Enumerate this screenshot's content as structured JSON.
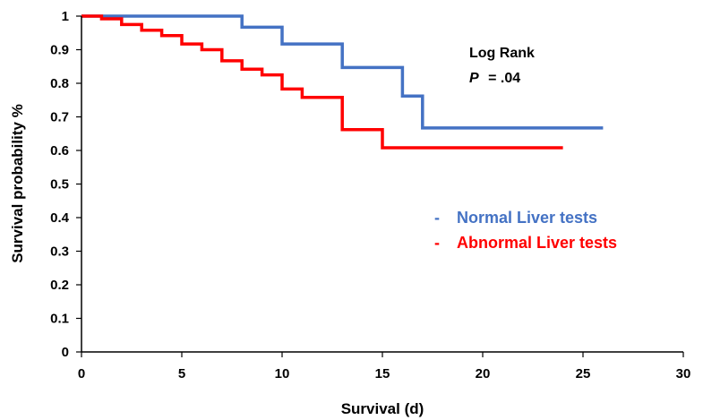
{
  "chart_data": {
    "type": "line",
    "title": "",
    "xlabel": "Survival (d)",
    "ylabel": "Survival probability %",
    "xlim": [
      0,
      30
    ],
    "ylim": [
      0,
      1
    ],
    "xticks": [
      0,
      5,
      10,
      15,
      20,
      25,
      30
    ],
    "yticks": [
      "0",
      "0.1",
      "0.2",
      "0.3",
      "0.4",
      "0.5",
      "0.6",
      "0.7",
      "0.8",
      "0.9",
      "1"
    ],
    "grid": false,
    "legend_position": "right",
    "step": true,
    "series": [
      {
        "name": "Normal Liver tests",
        "color": "#4472C4",
        "x": [
          0,
          8,
          10,
          13,
          16,
          17,
          26
        ],
        "y": [
          1.0,
          0.967,
          0.917,
          0.847,
          0.762,
          0.667,
          0.667
        ]
      },
      {
        "name": "Abnormal Liver tests",
        "color": "#FF0000",
        "x": [
          0,
          1,
          2,
          3,
          4,
          5,
          6,
          7,
          8,
          9,
          10,
          11,
          13,
          15,
          24
        ],
        "y": [
          1.0,
          0.992,
          0.975,
          0.958,
          0.942,
          0.917,
          0.9,
          0.867,
          0.842,
          0.825,
          0.783,
          0.758,
          0.662,
          0.608,
          0.608
        ]
      }
    ],
    "annotation": {
      "line1": "Log Rank",
      "p_label": "P",
      "p_value": "= .04"
    },
    "legend_marker": "-"
  }
}
